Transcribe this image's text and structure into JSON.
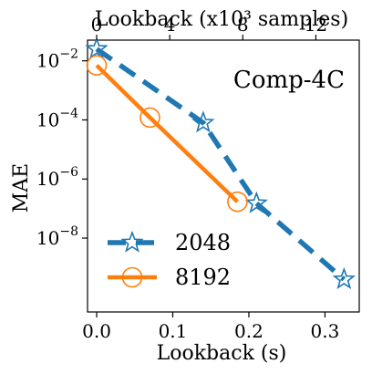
{
  "chart_data": {
    "type": "line",
    "title": "Comp-4C",
    "xlabel": "Lookback (s)",
    "ylabel": "MAE",
    "x2label": "Lookback (x10³ samples)",
    "xlim": [
      -0.012,
      0.345
    ],
    "ylim_log10": [
      -10.5,
      -1.3
    ],
    "yscale": "log",
    "grid": false,
    "legend_position": "lower-left",
    "xticks": [
      {
        "value": 0.0,
        "label": "0.0"
      },
      {
        "value": 0.1,
        "label": "0.1"
      },
      {
        "value": 0.2,
        "label": "0.2"
      },
      {
        "value": 0.3,
        "label": "0.3"
      }
    ],
    "x2ticks": [
      {
        "value": 0,
        "label": "0"
      },
      {
        "value": 4,
        "label": "4"
      },
      {
        "value": 8,
        "label": "8"
      },
      {
        "value": 12,
        "label": "12"
      }
    ],
    "x2_scale_per_x": 41.667,
    "yticks": [
      {
        "exp": -2,
        "label_base": "10",
        "label_exp": "−2"
      },
      {
        "exp": -4,
        "label_base": "10",
        "label_exp": "−4"
      },
      {
        "exp": -6,
        "label_base": "10",
        "label_exp": "−6"
      },
      {
        "exp": -8,
        "label_base": "10",
        "label_exp": "−8"
      }
    ],
    "series": [
      {
        "name": "2048",
        "color": "#1f77b4",
        "marker": "star",
        "linestyle": "dashed",
        "points": [
          {
            "x": 0.0,
            "y": 0.025
          },
          {
            "x": 0.14,
            "y": 8e-05
          },
          {
            "x": 0.21,
            "y": 1.5e-07
          },
          {
            "x": 0.325,
            "y": 4e-10
          }
        ]
      },
      {
        "name": "8192",
        "color": "#ff7f0e",
        "marker": "circle",
        "linestyle": "solid",
        "points": [
          {
            "x": 0.0,
            "y": 0.007
          },
          {
            "x": 0.07,
            "y": 0.00012
          },
          {
            "x": 0.185,
            "y": 1.7e-07
          }
        ]
      }
    ]
  }
}
